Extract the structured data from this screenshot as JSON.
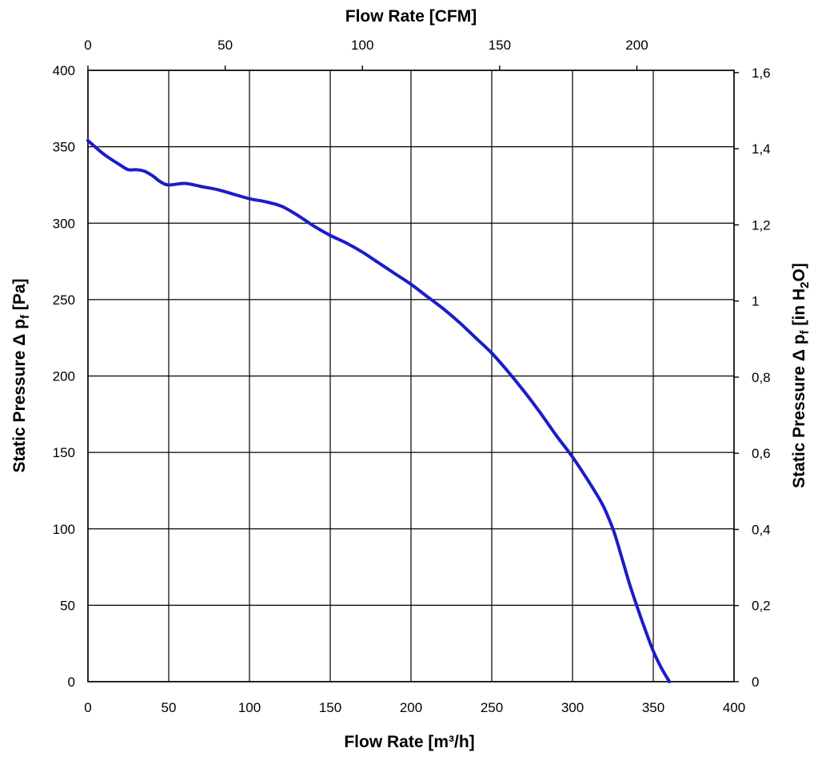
{
  "chart_data": {
    "type": "line",
    "title": "",
    "xlabel": "Flow Rate [m³/h]",
    "x2label": "Flow Rate [CFM]",
    "ylabel": "Static Pressure Δ p",
    "ylabel_sub": "f",
    "ylabel_unit": " [Pa]",
    "y2label": "Static Pressure Δ p",
    "y2label_sub": "f",
    "y2label_unit_pre": " [in H",
    "y2label_unit_sub": "2",
    "y2label_unit_post": "O]",
    "xlim": [
      0,
      400
    ],
    "ylim": [
      0,
      400
    ],
    "x2lim": [
      0,
      235.4
    ],
    "y2lim": [
      0,
      1.606
    ],
    "grid": true,
    "x_ticks": [
      "0",
      "50",
      "100",
      "150",
      "200",
      "250",
      "300",
      "350",
      "400"
    ],
    "y_ticks": [
      "0",
      "50",
      "100",
      "150",
      "200",
      "250",
      "300",
      "350",
      "400"
    ],
    "x2_ticks": [
      {
        "value": 0,
        "label": "0"
      },
      {
        "value": 50,
        "label": "50"
      },
      {
        "value": 100,
        "label": "100"
      },
      {
        "value": 150,
        "label": "150"
      },
      {
        "value": 200,
        "label": "200"
      }
    ],
    "y2_ticks": [
      {
        "value": 0,
        "label": "0"
      },
      {
        "value": 0.2,
        "label": "0,2"
      },
      {
        "value": 0.4,
        "label": "0,4"
      },
      {
        "value": 0.6,
        "label": "0,6"
      },
      {
        "value": 0.8,
        "label": "0,8"
      },
      {
        "value": 1.0,
        "label": "1"
      },
      {
        "value": 1.2,
        "label": "1,2"
      },
      {
        "value": 1.4,
        "label": "1,4"
      },
      {
        "value": 1.6,
        "label": "1,6"
      }
    ],
    "series": [
      {
        "color": "#1c1cc8",
        "x": [
          0,
          10,
          20,
          25,
          30,
          35,
          40,
          45,
          50,
          60,
          70,
          80,
          90,
          100,
          110,
          120,
          130,
          140,
          150,
          160,
          170,
          180,
          190,
          200,
          210,
          220,
          230,
          240,
          250,
          260,
          270,
          280,
          290,
          300,
          310,
          318,
          322,
          326,
          330,
          335,
          340,
          345,
          350,
          355,
          360
        ],
        "y": [
          354,
          345,
          338,
          335,
          335,
          334,
          331,
          327,
          325,
          326,
          324,
          322,
          319,
          316,
          314,
          311,
          305,
          298,
          292,
          287,
          281,
          274,
          267,
          260,
          252,
          244,
          235,
          225,
          215,
          203,
          190,
          176,
          161,
          147,
          131,
          117,
          108,
          97,
          83,
          65,
          49,
          34,
          20,
          9,
          0
        ]
      }
    ]
  }
}
